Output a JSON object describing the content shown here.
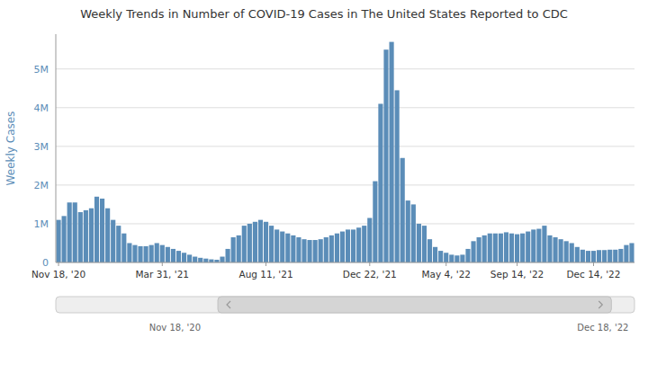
{
  "chart_data": {
    "type": "bar",
    "title": "Weekly Trends in Number of COVID-19 Cases in The United States Reported to CDC",
    "y_label": "Weekly Cases",
    "color": "#5b8db8",
    "grid": true,
    "ylim": [
      0,
      5900000
    ],
    "yticks": [
      0,
      {
        "value": 1000000,
        "label": "1M"
      },
      {
        "value": 2000000,
        "label": "2M"
      },
      {
        "value": 3000000,
        "label": "3M"
      },
      {
        "value": 4000000,
        "label": "4M"
      },
      {
        "value": 5000000,
        "label": "5M"
      }
    ],
    "annotations": [
      "Nov 18, '20",
      "Dec 18, '22"
    ],
    "categories": [
      "Nov 18, '20",
      null,
      null,
      null,
      null,
      null,
      null,
      null,
      null,
      null,
      null,
      null,
      null,
      null,
      null,
      null,
      null,
      null,
      null,
      "Mar 31, '21",
      null,
      null,
      null,
      null,
      null,
      null,
      null,
      null,
      null,
      null,
      null,
      null,
      null,
      null,
      null,
      null,
      null,
      null,
      "Aug 11, '21",
      null,
      null,
      null,
      null,
      null,
      null,
      null,
      null,
      null,
      null,
      null,
      null,
      null,
      null,
      null,
      null,
      null,
      null,
      "Dec 22, '21",
      null,
      null,
      null,
      null,
      null,
      null,
      null,
      null,
      null,
      null,
      null,
      null,
      null,
      "May 4, '22",
      null,
      null,
      null,
      null,
      null,
      null,
      null,
      null,
      null,
      null,
      null,
      null,
      "Sep 14, '22",
      null,
      null,
      null,
      null,
      null,
      null,
      null,
      null,
      null,
      null,
      null,
      null,
      null,
      "Dec 14, '22",
      null,
      null,
      null,
      null,
      null,
      null,
      null
    ],
    "values": [
      1100000,
      1200000,
      1550000,
      1550000,
      1300000,
      1350000,
      1400000,
      1700000,
      1650000,
      1400000,
      1100000,
      950000,
      750000,
      500000,
      450000,
      420000,
      420000,
      450000,
      500000,
      450000,
      400000,
      350000,
      300000,
      250000,
      200000,
      150000,
      120000,
      100000,
      80000,
      70000,
      150000,
      350000,
      650000,
      700000,
      950000,
      1000000,
      1050000,
      1100000,
      1050000,
      950000,
      850000,
      800000,
      750000,
      700000,
      650000,
      600000,
      580000,
      580000,
      600000,
      650000,
      700000,
      750000,
      800000,
      850000,
      850000,
      900000,
      950000,
      1150000,
      2100000,
      4100000,
      5500000,
      5700000,
      4450000,
      2700000,
      1600000,
      1500000,
      1000000,
      950000,
      600000,
      400000,
      300000,
      250000,
      200000,
      180000,
      200000,
      350000,
      550000,
      650000,
      700000,
      750000,
      750000,
      750000,
      780000,
      750000,
      730000,
      750000,
      800000,
      850000,
      870000,
      950000,
      700000,
      650000,
      600000,
      550000,
      500000,
      400000,
      330000,
      300000,
      300000,
      320000,
      320000,
      330000,
      330000,
      350000,
      450000,
      500000
    ]
  }
}
